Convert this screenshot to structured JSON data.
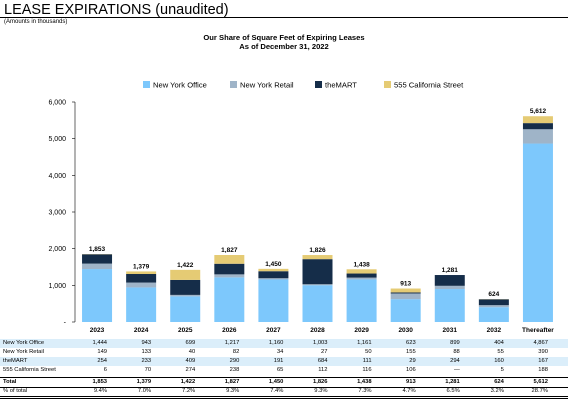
{
  "header": {
    "title": "LEASE EXPIRATIONS (unaudited)",
    "subtitle": "(Amounts in thousands)"
  },
  "colors": {
    "new_york_office": "#7dc8fc",
    "new_york_retail": "#9fb4c8",
    "themart": "#152d49",
    "california": "#e5cb74",
    "table_shade": "#dbeefa"
  },
  "chart_data": {
    "type": "bar",
    "stacked": true,
    "title": "Our Share of Square Feet of Expiring Leases",
    "subtitle": "As of December 31, 2022",
    "categories": [
      "2023",
      "2024",
      "2025",
      "2026",
      "2027",
      "2028",
      "2029",
      "2030",
      "2031",
      "2032",
      "Thereafter"
    ],
    "series": [
      {
        "name": "New York Office",
        "color": "#7dc8fc",
        "values": [
          1444,
          943,
          699,
          1217,
          1160,
          1003,
          1161,
          623,
          899,
          404,
          4867
        ]
      },
      {
        "name": "New York Retail",
        "color": "#9fb4c8",
        "values": [
          149,
          133,
          40,
          82,
          34,
          27,
          50,
          155,
          88,
          55,
          390
        ]
      },
      {
        "name": "theMART",
        "color": "#152d49",
        "values": [
          254,
          233,
          409,
          290,
          191,
          684,
          111,
          29,
          294,
          160,
          167
        ]
      },
      {
        "name": "555 California Street",
        "color": "#e5cb74",
        "values": [
          6,
          70,
          274,
          238,
          65,
          112,
          116,
          106,
          0,
          5,
          188
        ]
      }
    ],
    "totals": [
      1853,
      1379,
      1422,
      1827,
      1450,
      1826,
      1438,
      913,
      1281,
      624,
      5612
    ],
    "total_labels": [
      "1,853",
      "1,379",
      "1,422",
      "1,827",
      "1,450",
      "1,826",
      "1,438",
      "913",
      "1,281",
      "624",
      "5,612"
    ],
    "ylim": [
      0,
      6000
    ],
    "yticks": [
      "6,000",
      "5,000",
      "4,000",
      "3,000",
      "2,000",
      "1,000",
      "-"
    ],
    "legend_position": "top",
    "grid": false
  },
  "table": {
    "rows": [
      {
        "label": "New York Office",
        "values": [
          "1,444",
          "943",
          "699",
          "1,217",
          "1,160",
          "1,003",
          "1,161",
          "623",
          "899",
          "404",
          "4,867"
        ]
      },
      {
        "label": "New York Retail",
        "values": [
          "149",
          "133",
          "40",
          "82",
          "34",
          "27",
          "50",
          "155",
          "88",
          "55",
          "390"
        ]
      },
      {
        "label": "theMART",
        "values": [
          "254",
          "233",
          "409",
          "290",
          "191",
          "684",
          "111",
          "29",
          "294",
          "160",
          "167"
        ]
      },
      {
        "label": "555 California Street",
        "values": [
          "6",
          "70",
          "274",
          "238",
          "65",
          "112",
          "116",
          "106",
          "—",
          "5",
          "188"
        ]
      }
    ],
    "total": {
      "label": "Total",
      "values": [
        "1,853",
        "1,379",
        "1,422",
        "1,827",
        "1,450",
        "1,826",
        "1,438",
        "913",
        "1,281",
        "624",
        "5,612"
      ]
    },
    "percent": {
      "label": "% of total",
      "values": [
        "9.4%",
        "7.0%",
        "7.2%",
        "9.3%",
        "7.4%",
        "9.3%",
        "7.3%",
        "4.7%",
        "6.5%",
        "3.2%",
        "28.7%"
      ]
    }
  }
}
